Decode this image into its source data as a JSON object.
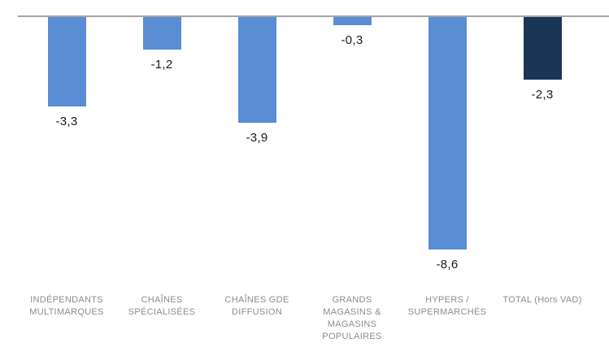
{
  "chart_data": {
    "type": "bar",
    "orientation": "vertical",
    "title": "",
    "xlabel": "",
    "ylabel": "",
    "ylim": [
      -9.5,
      0
    ],
    "grid": false,
    "legend": false,
    "baseline": 0,
    "value_label_position": "below-bar",
    "categories": [
      "INDÉPENDANTS\nMULTIMARQUES",
      "CHAÎNES\nSPÉCIALISÉES",
      "CHAÎNES GDE\nDIFFUSION",
      "GRANDS\nMAGASINS &\nMAGASINS\nPOPULAIRES",
      "HYPERS /\nSUPERMARCHÉS",
      "TOTAL (Hors VAD)"
    ],
    "values": [
      -3.3,
      -1.2,
      -3.9,
      -0.3,
      -8.6,
      -2.3
    ],
    "value_labels": [
      "-3,3",
      "-1,2",
      "-3,9",
      "-0,3",
      "-8,6",
      "-2,3"
    ],
    "bar_colors": [
      "#5A8DD4",
      "#5A8DD4",
      "#5A8DD4",
      "#5A8DD4",
      "#5A8DD4",
      "#1B3557"
    ],
    "axis_color": "#A6A6A6",
    "value_label_color": "#1A1A1A",
    "category_label_color": "#8C8C8C"
  }
}
